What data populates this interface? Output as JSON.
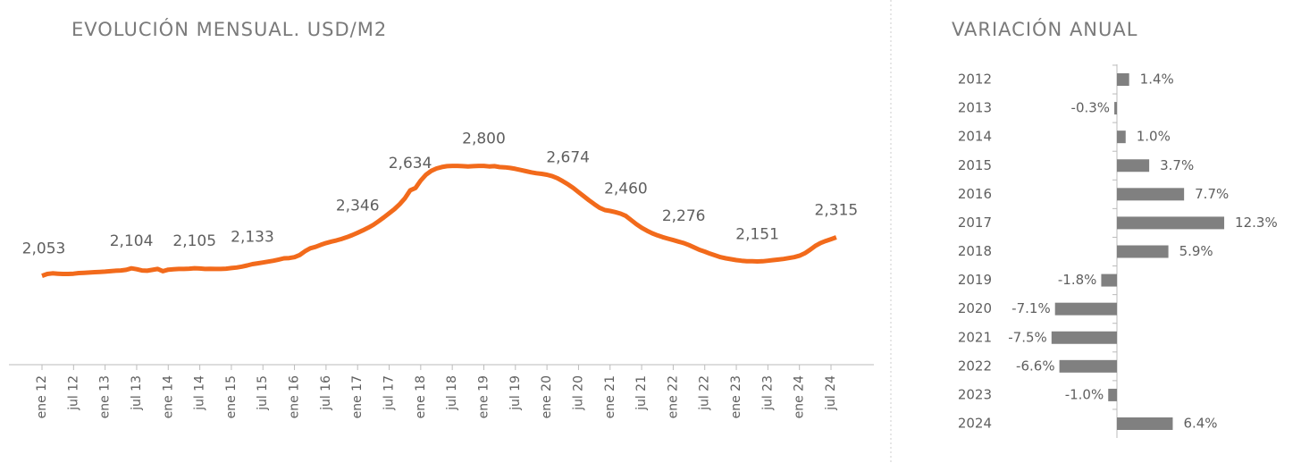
{
  "chart_data": [
    {
      "type": "line",
      "title": "EVOLUCIÓN MENSUAL. USD/M2",
      "color": "#f26a1b",
      "categories": [
        "ene 12",
        null,
        null,
        null,
        null,
        null,
        "jul 12",
        null,
        null,
        null,
        null,
        null,
        "ene 13",
        null,
        null,
        null,
        null,
        null,
        "jul 13",
        null,
        null,
        null,
        null,
        null,
        "ene 14",
        null,
        null,
        null,
        null,
        null,
        "jul 14",
        null,
        null,
        null,
        null,
        null,
        "ene 15",
        null,
        null,
        null,
        null,
        null,
        "jul 15",
        null,
        null,
        null,
        null,
        null,
        "ene 16",
        null,
        null,
        null,
        null,
        null,
        "jul 16",
        null,
        null,
        null,
        null,
        null,
        "ene 17",
        null,
        null,
        null,
        null,
        null,
        "jul 17",
        null,
        null,
        null,
        null,
        null,
        "ene 18",
        null,
        null,
        null,
        null,
        null,
        "jul 18",
        null,
        null,
        null,
        null,
        null,
        "ene 19",
        null,
        null,
        null,
        null,
        null,
        "jul 19",
        null,
        null,
        null,
        null,
        null,
        "ene 20",
        null,
        null,
        null,
        null,
        null,
        "jul 20",
        null,
        null,
        null,
        null,
        null,
        "ene 21",
        null,
        null,
        null,
        null,
        null,
        "jul 21",
        null,
        null,
        null,
        null,
        null,
        "ene 22",
        null,
        null,
        null,
        null,
        null,
        "jul 22",
        null,
        null,
        null,
        null,
        null,
        "ene 23",
        null,
        null,
        null,
        null,
        null,
        "jul 23",
        null,
        null,
        null,
        null,
        null,
        "ene 24",
        null,
        null,
        null,
        null,
        null,
        "jul 24",
        null
      ],
      "values": [
        2053,
        2066,
        2070,
        2068,
        2066,
        2066,
        2068,
        2072,
        2074,
        2076,
        2078,
        2080,
        2082,
        2085,
        2088,
        2090,
        2094,
        2104,
        2098,
        2090,
        2088,
        2094,
        2100,
        2085,
        2095,
        2098,
        2100,
        2100,
        2102,
        2105,
        2103,
        2100,
        2101,
        2100,
        2100,
        2102,
        2106,
        2110,
        2116,
        2124,
        2133,
        2138,
        2144,
        2150,
        2156,
        2164,
        2172,
        2174,
        2180,
        2195,
        2220,
        2240,
        2250,
        2264,
        2276,
        2286,
        2294,
        2304,
        2316,
        2330,
        2346,
        2362,
        2380,
        2400,
        2424,
        2450,
        2478,
        2506,
        2540,
        2580,
        2634,
        2650,
        2700,
        2740,
        2766,
        2782,
        2792,
        2798,
        2800,
        2800,
        2798,
        2796,
        2798,
        2800,
        2800,
        2796,
        2798,
        2792,
        2790,
        2786,
        2780,
        2772,
        2764,
        2756,
        2750,
        2746,
        2740,
        2730,
        2716,
        2696,
        2674,
        2650,
        2622,
        2594,
        2566,
        2540,
        2516,
        2500,
        2494,
        2486,
        2476,
        2460,
        2432,
        2404,
        2380,
        2360,
        2342,
        2328,
        2316,
        2306,
        2296,
        2286,
        2276,
        2262,
        2246,
        2230,
        2218,
        2204,
        2192,
        2180,
        2172,
        2166,
        2160,
        2156,
        2153,
        2152,
        2151,
        2152,
        2156,
        2160,
        2164,
        2168,
        2174,
        2180,
        2190,
        2206,
        2230,
        2256,
        2276,
        2290,
        2302,
        2315
      ],
      "value_labels": [
        "2,053",
        null,
        null,
        null,
        null,
        null,
        null,
        null,
        null,
        null,
        null,
        null,
        null,
        null,
        null,
        null,
        null,
        "2,104",
        null,
        null,
        null,
        null,
        null,
        null,
        null,
        null,
        null,
        null,
        null,
        "2,105",
        null,
        null,
        null,
        null,
        null,
        null,
        null,
        null,
        null,
        null,
        "2,133",
        null,
        null,
        null,
        null,
        null,
        null,
        null,
        null,
        null,
        null,
        null,
        null,
        null,
        null,
        null,
        null,
        null,
        null,
        null,
        "2,346",
        null,
        null,
        null,
        null,
        null,
        null,
        null,
        null,
        null,
        "2,634",
        null,
        null,
        null,
        null,
        null,
        null,
        null,
        null,
        null,
        null,
        null,
        null,
        null,
        "2,800",
        null,
        null,
        null,
        null,
        null,
        null,
        null,
        null,
        null,
        null,
        null,
        null,
        null,
        null,
        null,
        "2,674",
        null,
        null,
        null,
        null,
        null,
        null,
        null,
        null,
        null,
        null,
        "2,460",
        null,
        null,
        null,
        null,
        null,
        null,
        null,
        null,
        null,
        null,
        "2,276",
        null,
        null,
        null,
        null,
        null,
        null,
        null,
        null,
        null,
        null,
        null,
        null,
        null,
        "2,151",
        null,
        null,
        null,
        null,
        null,
        null,
        null,
        null,
        null,
        null,
        null,
        null,
        null,
        null,
        "2,315"
      ],
      "ylim": [
        1450,
        3550
      ]
    },
    {
      "type": "barh",
      "title": "VARIACIÓN ANUAL",
      "color": "#808080",
      "categories": [
        "2012",
        "2013",
        "2014",
        "2015",
        "2016",
        "2017",
        "2018",
        "2019",
        "2020",
        "2021",
        "2022",
        "2023",
        "2024"
      ],
      "values": [
        1.4,
        -0.3,
        1,
        3.7,
        7.7,
        12.3,
        5.9,
        -1.8,
        -7.1,
        -7.5,
        -6.6,
        -1,
        6.4
      ],
      "value_labels": [
        "1.4%",
        "-0.3%",
        "1.0%",
        "3.7%",
        "7.7%",
        "12.3%",
        "5.9%",
        "-1.8%",
        "-7.1%",
        "-7.5%",
        "-6.6%",
        "-1.0%",
        "6.4%"
      ],
      "xlim": [
        -10,
        13
      ]
    }
  ]
}
